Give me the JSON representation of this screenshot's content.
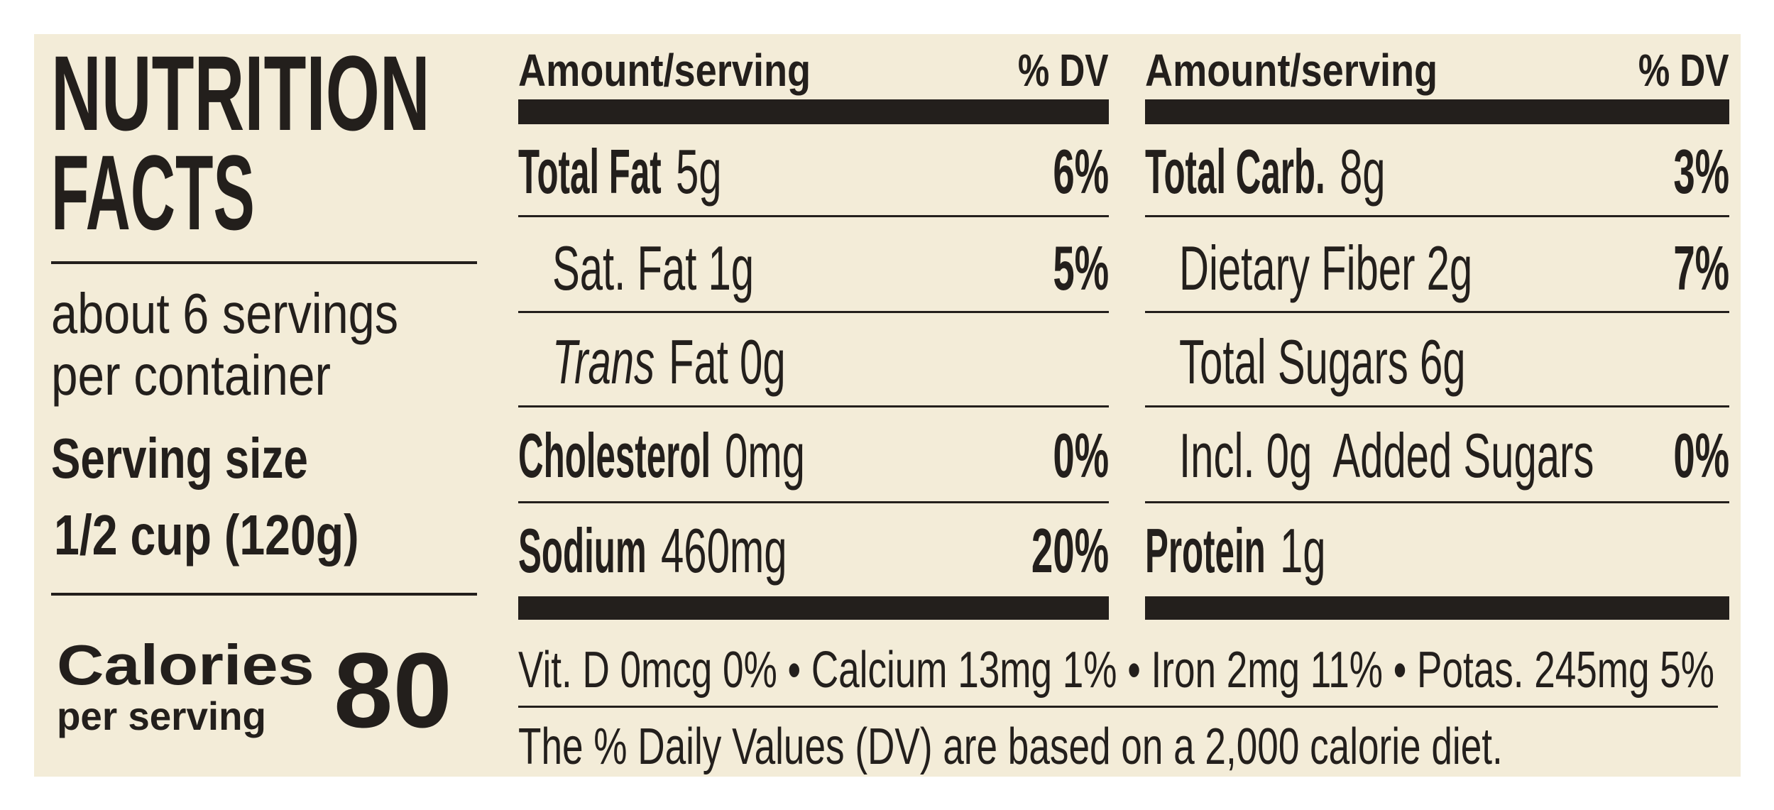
{
  "title_lines": [
    "NUTRITION",
    "FACTS"
  ],
  "servings_lines": [
    "about 6 servings",
    "per container"
  ],
  "serving_size": {
    "label": "Serving size",
    "value": "1/2 cup (120g)"
  },
  "calories": {
    "label": "Calories",
    "sublabel": "per serving",
    "value": 80
  },
  "columns": [
    {
      "header": {
        "amount": "Amount/serving",
        "dv": "% DV"
      },
      "rows": [
        {
          "bold": "Total Fat",
          "text": "5g",
          "dv": "6%"
        },
        {
          "text": "Sat. Fat 1g",
          "dv": "5%"
        },
        {
          "italic": "Trans",
          "text": "Fat 0g"
        },
        {
          "bold": "Cholesterol",
          "text": "0mg",
          "dv": "0%"
        },
        {
          "bold": "Sodium",
          "text": "460mg",
          "dv": "20%"
        }
      ]
    },
    {
      "header": {
        "amount": "Amount/serving",
        "dv": "% DV"
      },
      "rows": [
        {
          "bold": "Total Carb.",
          "text": "8g",
          "dv": "3%"
        },
        {
          "text": "Dietary Fiber 2g",
          "dv": "7%"
        },
        {
          "text": "Total Sugars 6g"
        },
        {
          "text": "Incl. 0g  Added Sugars",
          "dv": "0%"
        },
        {
          "bold": "Protein",
          "text": "1g"
        }
      ]
    }
  ],
  "vitamins": "Vit. D 0mcg 0% • Calcium 13mg 1% • Iron 2mg 11% • Potas. 245mg 5%",
  "footnote": "The % Daily Values (DV) are based on a 2,000 calorie diet."
}
